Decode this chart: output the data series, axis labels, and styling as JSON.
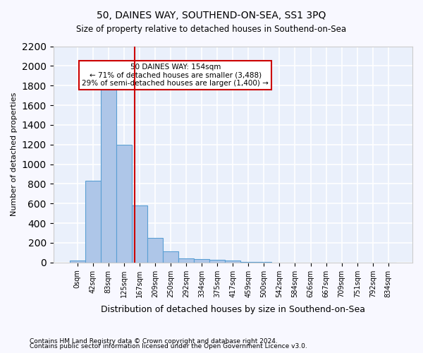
{
  "title1": "50, DAINES WAY, SOUTHEND-ON-SEA, SS1 3PQ",
  "title2": "Size of property relative to detached houses in Southend-on-Sea",
  "xlabel": "Distribution of detached houses by size in Southend-on-Sea",
  "ylabel": "Number of detached properties",
  "footer1": "Contains HM Land Registry data © Crown copyright and database right 2024.",
  "footer2": "Contains public sector information licensed under the Open Government Licence v3.0.",
  "bar_values": [
    20,
    830,
    1800,
    1200,
    580,
    250,
    110,
    40,
    35,
    30,
    20,
    5,
    3,
    2,
    1,
    0,
    0,
    0,
    0,
    0,
    0
  ],
  "bar_labels": [
    "0sqm",
    "42sqm",
    "83sqm",
    "125sqm",
    "167sqm",
    "209sqm",
    "250sqm",
    "292sqm",
    "334sqm",
    "375sqm",
    "417sqm",
    "459sqm",
    "500sqm",
    "542sqm",
    "584sqm",
    "626sqm",
    "667sqm",
    "709sqm",
    "751sqm",
    "792sqm",
    "834sqm"
  ],
  "bar_color": "#aec6e8",
  "bar_edge_color": "#5a9fd4",
  "bg_color": "#eaf0fb",
  "grid_color": "#ffffff",
  "vline_x": 3.7,
  "vline_color": "#cc0000",
  "annotation_text": "50 DAINES WAY: 154sqm\n← 71% of detached houses are smaller (3,488)\n29% of semi-detached houses are larger (1,400) →",
  "annotation_box_color": "#ffffff",
  "annotation_border_color": "#cc0000",
  "ylim": [
    0,
    2200
  ],
  "yticks": [
    0,
    200,
    400,
    600,
    800,
    1000,
    1200,
    1400,
    1600,
    1800,
    2000,
    2200
  ]
}
